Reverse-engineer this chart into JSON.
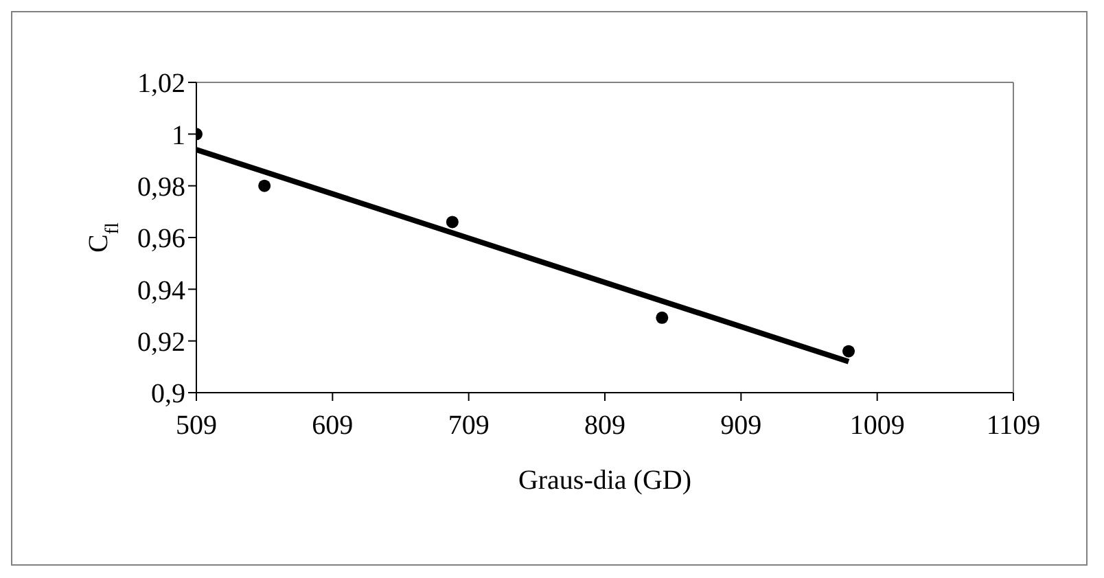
{
  "chart_data": {
    "type": "scatter",
    "xlabel": "Graus-dia (GD)",
    "ylabel": "C$_{fl}$",
    "xlim": [
      509,
      1109
    ],
    "xticks": [
      509,
      609,
      709,
      809,
      909,
      1009,
      1109
    ],
    "ylim": [
      0.9,
      1.02
    ],
    "yticks": [
      {
        "value": 0.9,
        "label": "0,9"
      },
      {
        "value": 0.92,
        "label": "0,92"
      },
      {
        "value": 0.94,
        "label": "0,94"
      },
      {
        "value": 0.96,
        "label": "0,96"
      },
      {
        "value": 0.98,
        "label": "0,98"
      },
      1,
      {
        "value": 1.02,
        "label": "1,02"
      }
    ],
    "grid": false,
    "legend": false,
    "marker": "circle",
    "series": [
      {
        "type": "scatter",
        "color": "#000000",
        "x": [
          509,
          559,
          697,
          851,
          988
        ],
        "values": [
          1.0,
          0.98,
          0.966,
          0.929,
          0.916
        ]
      },
      {
        "type": "line",
        "color": "#000000",
        "line_style": "solid",
        "marker": "none",
        "x": [
          509,
          988
        ],
        "values": [
          0.994,
          0.912
        ]
      }
    ]
  }
}
